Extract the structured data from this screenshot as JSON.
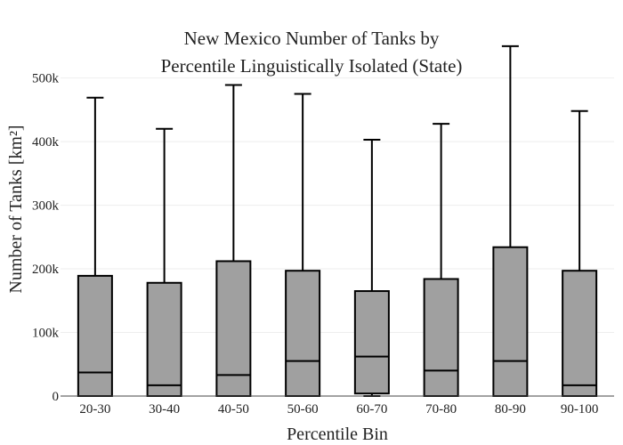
{
  "chart_data": {
    "type": "box",
    "title": [
      "New Mexico Number of Tanks by",
      "Percentile Linguistically Isolated (State)"
    ],
    "xlabel": "Percentile Bin",
    "ylabel": "Number of Tanks  [km²]",
    "ylim": [
      0,
      575000
    ],
    "yticks": [
      0,
      100000,
      200000,
      300000,
      400000,
      500000
    ],
    "ytick_labels": [
      "0",
      "100k",
      "200k",
      "300k",
      "400k",
      "500k"
    ],
    "grid": true,
    "box_color": "#a0a0a0",
    "categories": [
      "20-30",
      "30-40",
      "40-50",
      "50-60",
      "60-70",
      "70-80",
      "80-90",
      "90-100"
    ],
    "boxes": [
      {
        "min": 0,
        "q1": 0,
        "median": 37000,
        "q3": 189000,
        "max": 469000
      },
      {
        "min": 0,
        "q1": 0,
        "median": 17000,
        "q3": 178000,
        "max": 420000
      },
      {
        "min": 0,
        "q1": 0,
        "median": 33000,
        "q3": 212000,
        "max": 489000
      },
      {
        "min": 0,
        "q1": 0,
        "median": 55000,
        "q3": 197000,
        "max": 475000
      },
      {
        "min": 0,
        "q1": 4000,
        "median": 62000,
        "q3": 165000,
        "max": 403000
      },
      {
        "min": 0,
        "q1": 0,
        "median": 40000,
        "q3": 184000,
        "max": 428000
      },
      {
        "min": 0,
        "q1": 0,
        "median": 55000,
        "q3": 234000,
        "max": 550000
      },
      {
        "min": 0,
        "q1": 0,
        "median": 17000,
        "q3": 197000,
        "max": 448000
      }
    ]
  }
}
